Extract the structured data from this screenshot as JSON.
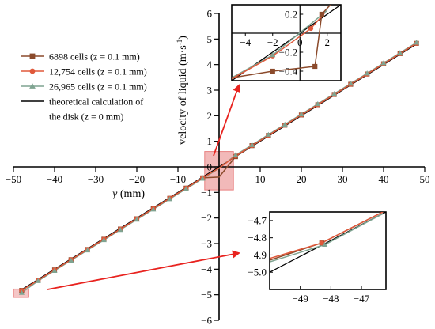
{
  "chart_data": {
    "type": "line",
    "x": [
      -48,
      -44,
      -40,
      -36,
      -32,
      -28,
      -24,
      -20,
      -16,
      -12,
      -8,
      -4,
      0,
      4,
      8,
      12,
      16,
      20,
      24,
      28,
      32,
      36,
      40,
      44,
      48
    ],
    "series": [
      {
        "name": "6898 cells (z = 0.1 mm)",
        "color": "#8b4a2b",
        "marker": "square",
        "values": [
          -4.83,
          -4.43,
          -4.03,
          -3.63,
          -3.23,
          -2.83,
          -2.43,
          -2.03,
          -1.63,
          -1.23,
          -0.83,
          -0.43,
          -0.4,
          0.4,
          0.83,
          1.23,
          1.63,
          2.03,
          2.43,
          2.83,
          3.23,
          3.63,
          4.03,
          4.43,
          4.83
        ]
      },
      {
        "name": "12,754 cells (z = 0.1 mm)",
        "color": "#e0583a",
        "marker": "circle",
        "values": [
          -4.83,
          -4.43,
          -4.03,
          -3.63,
          -3.23,
          -2.83,
          -2.43,
          -2.03,
          -1.63,
          -1.23,
          -0.83,
          -0.43,
          -0.05,
          0.43,
          0.83,
          1.23,
          1.63,
          2.03,
          2.43,
          2.83,
          3.23,
          3.63,
          4.03,
          4.43,
          4.83
        ]
      },
      {
        "name": "26,965 cells (z = 0.1 mm)",
        "color": "#7fa491",
        "marker": "triangle",
        "values": [
          -4.92,
          -4.46,
          -4.06,
          -3.66,
          -3.26,
          -2.86,
          -2.46,
          -2.06,
          -1.66,
          -1.26,
          -0.86,
          -0.46,
          -0.06,
          0.46,
          0.86,
          1.26,
          1.66,
          2.06,
          2.46,
          2.86,
          3.26,
          3.66,
          4.06,
          4.46,
          4.86
        ]
      },
      {
        "name": "theoretical calculation of the disk (z = 0 mm)",
        "color": "#000000",
        "marker": "none",
        "values": [
          -4.8,
          -4.4,
          -4.0,
          -3.6,
          -3.2,
          -2.8,
          -2.4,
          -2.0,
          -1.6,
          -1.2,
          -0.8,
          -0.4,
          0.0,
          0.4,
          0.8,
          1.2,
          1.6,
          2.0,
          2.4,
          2.8,
          3.2,
          3.6,
          4.0,
          4.4,
          4.8
        ]
      }
    ],
    "legend_lines": [
      "6898 cells (z = 0.1 mm)",
      "12,754 cells (z = 0.1 mm)",
      "26,965 cells (z = 0.1 mm)",
      "theoretical calculation of",
      "the disk (z = 0 mm)"
    ],
    "xlabel_var": "y",
    "xlabel_unit": " (mm)",
    "ylabel": "velocity of liquid (m·s",
    "ylabel_sup": "-1",
    "ylabel_close": ")",
    "xlim": [
      -50,
      50
    ],
    "ylim": [
      -6,
      6
    ],
    "xticks": [
      -50,
      -40,
      -30,
      -20,
      -10,
      0,
      10,
      20,
      30,
      40,
      50
    ],
    "xtick_labels": [
      "−50",
      "−40",
      "−30",
      "−20",
      "−10",
      "",
      "10",
      "20",
      "30",
      "40",
      "50"
    ],
    "yticks": [
      -6,
      -5,
      -4,
      -3,
      -2,
      -1,
      0,
      1,
      2,
      3,
      4,
      5,
      6
    ],
    "ytick_labels": [
      "−6",
      "−5",
      "−4",
      "−3",
      "−2",
      "−1",
      "0",
      "1",
      "2",
      "3",
      "4",
      "5",
      "6"
    ],
    "legend_position": "upper-left",
    "grid": false,
    "callout_color": "#e8231f",
    "highlight_color": "#e88080",
    "insets": [
      {
        "xlim": [
          -5,
          3
        ],
        "ylim": [
          -0.5,
          0.3
        ],
        "xticks": [
          -4,
          -2,
          0,
          2
        ],
        "xtick_labels": [
          "−4",
          "−2",
          "0",
          "2"
        ],
        "yticks": [
          -0.4,
          -0.2,
          0.0,
          0.2
        ],
        "ytick_labels": [
          "−0.4",
          "−0.2",
          "",
          "0.2"
        ],
        "series": [
          {
            "name": "6898 cells (z = 0.1 mm)",
            "x": [
              -5,
              -2,
              1.1,
              1.6,
              2.3
            ],
            "y": [
              -0.47,
              -0.4,
              -0.35,
              0.2,
              0.31
            ]
          },
          {
            "name": "12,754 cells (z = 0.1 mm)",
            "x": [
              -5,
              -2,
              0.8,
              1.8
            ],
            "y": [
              -0.48,
              -0.24,
              0.05,
              0.21
            ]
          },
          {
            "name": "26,965 cells (z = 0.1 mm)",
            "x": [
              -5,
              -2,
              2.0
            ],
            "y": [
              -0.47,
              -0.23,
              0.24
            ]
          },
          {
            "name": "theoretical calculation of the disk (z = 0 mm)",
            "x": [
              -5,
              3
            ],
            "y": [
              -0.5,
              0.3
            ]
          }
        ]
      },
      {
        "xlim": [
          -50,
          -46.2
        ],
        "ylim": [
          -5.1,
          -4.65
        ],
        "xticks": [
          -49,
          -48,
          -47
        ],
        "xtick_labels": [
          "−49",
          "−48",
          "−47"
        ],
        "yticks": [
          -5.0,
          -4.9,
          -4.8,
          -4.7
        ],
        "ytick_labels": [
          "−5.0",
          "−4.9",
          "−4.8",
          "−4.7"
        ],
        "series": [
          {
            "name": "6898 cells (z = 0.1 mm)",
            "x": [
              -50,
              -48.3,
              -46.3
            ],
            "y": [
              -4.93,
              -4.83,
              -4.65
            ]
          },
          {
            "name": "12,754 cells (z = 0.1 mm)",
            "x": [
              -50,
              -48.3,
              -46.3
            ],
            "y": [
              -4.92,
              -4.83,
              -4.65
            ]
          },
          {
            "name": "26,965 cells (z = 0.1 mm)",
            "x": [
              -50,
              -48.2,
              -46.3
            ],
            "y": [
              -4.94,
              -4.84,
              -4.66
            ]
          },
          {
            "name": "theoretical calculation of the disk (z = 0 mm)",
            "x": [
              -50,
              -46.2
            ],
            "y": [
              -5.0,
              -4.65
            ]
          }
        ]
      }
    ]
  }
}
